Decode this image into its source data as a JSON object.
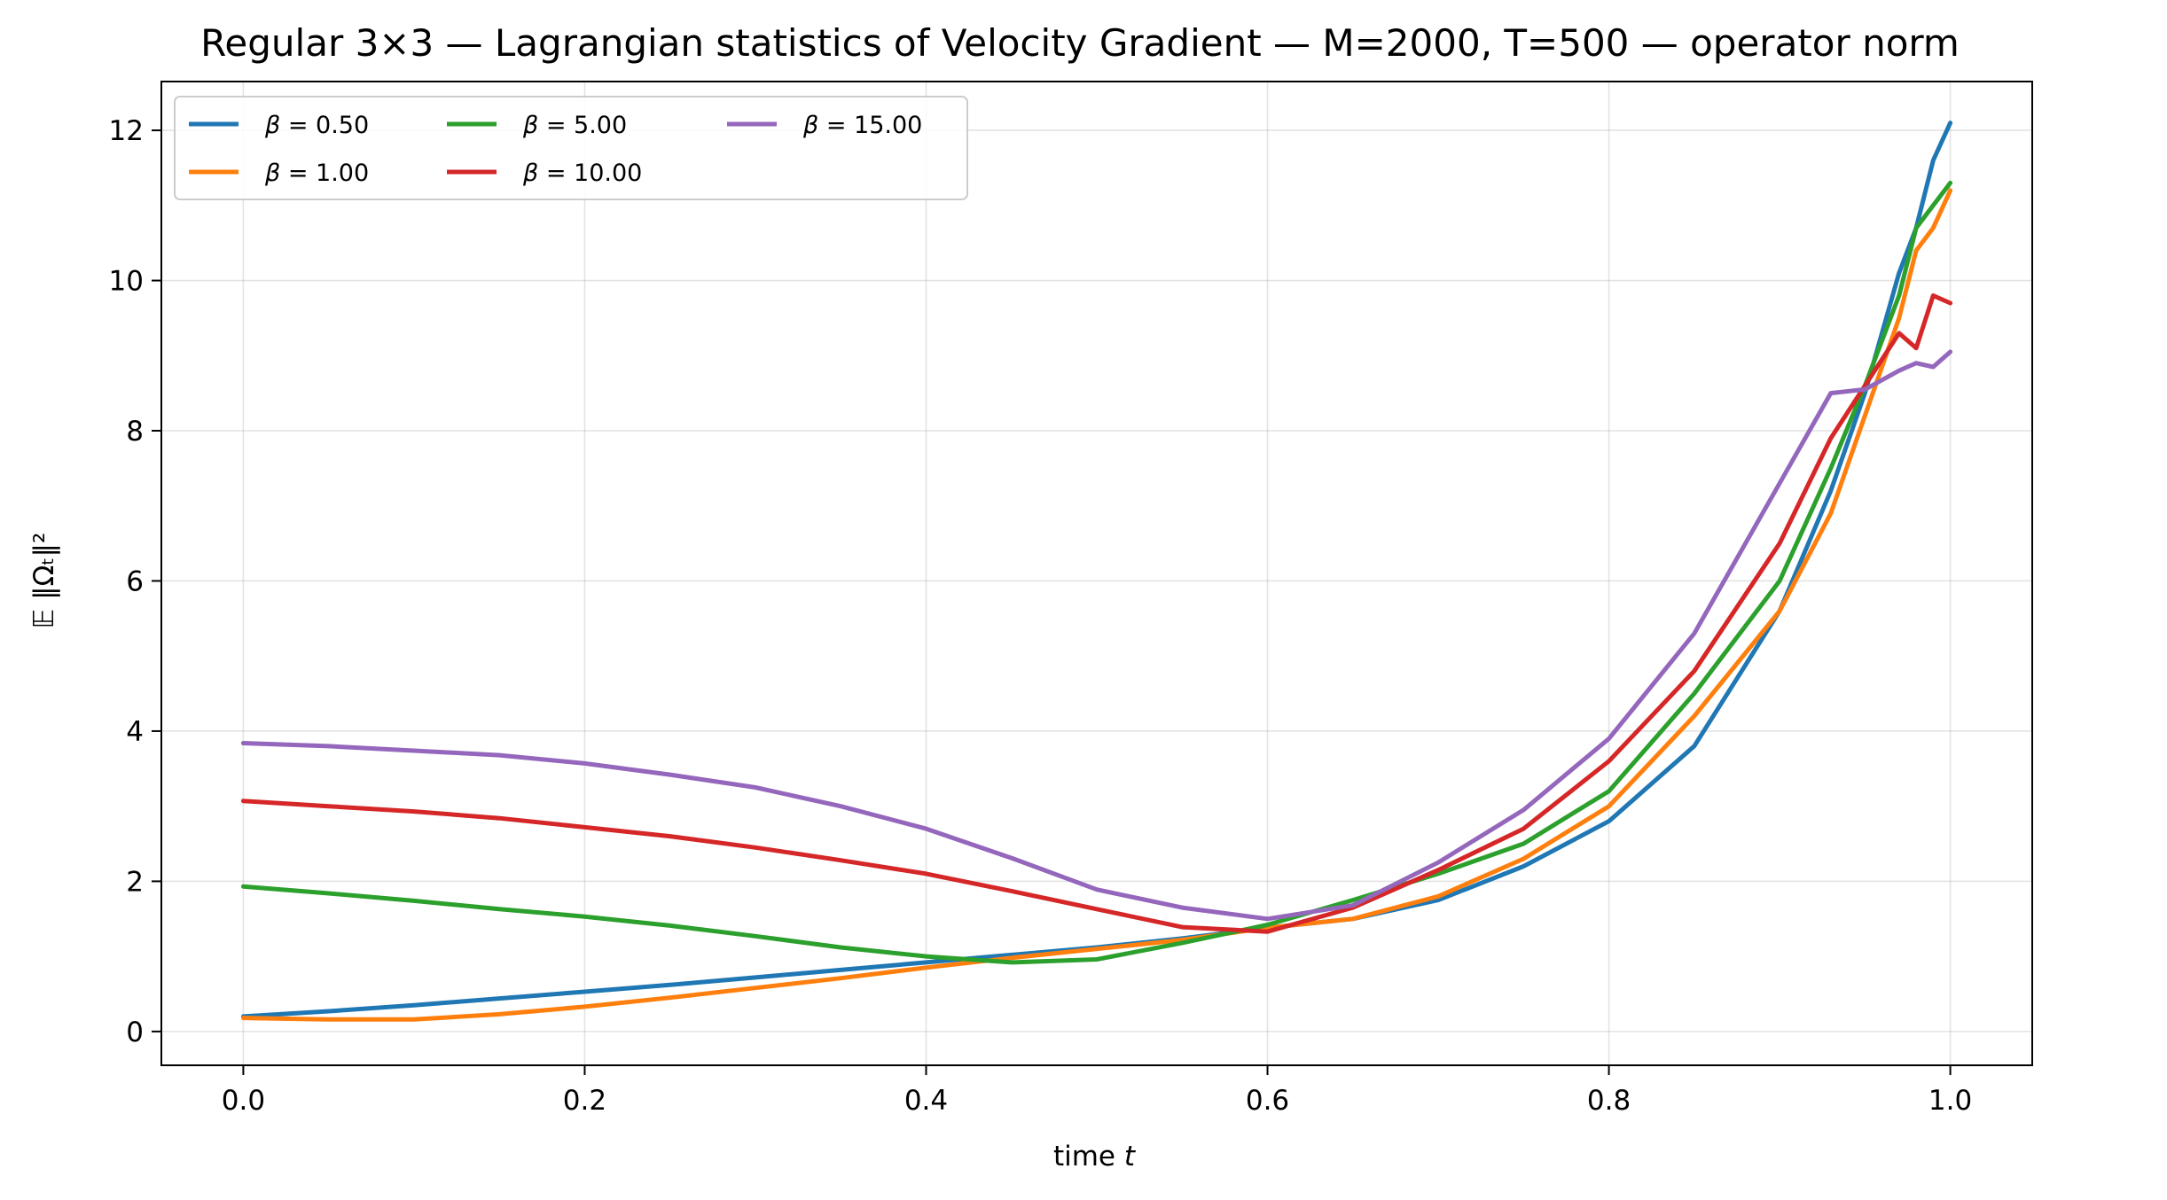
{
  "chart_data": {
    "type": "line",
    "title": "Regular 3×3 — Lagrangian statistics of Velocity Gradient — M=2000, T=500 — operator norm",
    "xlabel": "time t",
    "ylabel": "𝔼 ‖Ωₜ‖²",
    "xlim": [
      -0.048,
      1.048
    ],
    "ylim": [
      -0.45,
      12.65
    ],
    "xticks": [
      0.0,
      0.2,
      0.4,
      0.6,
      0.8,
      1.0
    ],
    "xtick_labels": [
      "0.0",
      "0.2",
      "0.4",
      "0.6",
      "0.8",
      "1.0"
    ],
    "yticks": [
      0,
      2,
      4,
      6,
      8,
      10,
      12
    ],
    "ytick_labels": [
      "0",
      "2",
      "4",
      "6",
      "8",
      "10",
      "12"
    ],
    "grid": true,
    "legend_position": "top-left",
    "legend_columns": 3,
    "x": [
      0.0,
      0.05,
      0.1,
      0.15,
      0.2,
      0.25,
      0.3,
      0.35,
      0.4,
      0.45,
      0.5,
      0.55,
      0.6,
      0.65,
      0.7,
      0.75,
      0.8,
      0.85,
      0.9,
      0.93,
      0.95,
      0.97,
      0.98,
      0.99,
      1.0
    ],
    "series": [
      {
        "name": "β = 0.50",
        "legend_prefix": "β = ",
        "legend_value": "0.50",
        "color": "#1f77b4",
        "values": [
          0.2,
          0.27,
          0.35,
          0.44,
          0.53,
          0.62,
          0.72,
          0.82,
          0.92,
          1.02,
          1.12,
          1.24,
          1.38,
          1.5,
          1.75,
          2.2,
          2.8,
          3.8,
          5.6,
          7.2,
          8.5,
          10.1,
          10.7,
          11.6,
          12.1
        ]
      },
      {
        "name": "β = 1.00",
        "legend_prefix": "β = ",
        "legend_value": "1.00",
        "color": "#ff7f0e",
        "values": [
          0.18,
          0.16,
          0.16,
          0.23,
          0.33,
          0.45,
          0.58,
          0.71,
          0.85,
          0.98,
          1.1,
          1.22,
          1.38,
          1.5,
          1.8,
          2.3,
          3.0,
          4.2,
          5.6,
          6.9,
          8.2,
          9.5,
          10.4,
          10.7,
          11.2
        ]
      },
      {
        "name": "β = 5.00",
        "legend_prefix": "β = ",
        "legend_value": "5.00",
        "color": "#2ca02c",
        "values": [
          1.93,
          1.84,
          1.74,
          1.63,
          1.53,
          1.41,
          1.27,
          1.12,
          1.0,
          0.92,
          0.96,
          1.18,
          1.42,
          1.75,
          2.1,
          2.5,
          3.2,
          4.5,
          6.0,
          7.5,
          8.6,
          9.8,
          10.7,
          11.0,
          11.3
        ]
      },
      {
        "name": "β = 10.00",
        "legend_prefix": "β = ",
        "legend_value": "10.00",
        "color": "#d62728",
        "values": [
          3.07,
          3.0,
          2.93,
          2.84,
          2.72,
          2.6,
          2.45,
          2.28,
          2.1,
          1.87,
          1.63,
          1.39,
          1.33,
          1.65,
          2.15,
          2.7,
          3.6,
          4.8,
          6.5,
          7.9,
          8.6,
          9.3,
          9.1,
          9.8,
          9.7
        ]
      },
      {
        "name": "β = 15.00",
        "legend_prefix": "β = ",
        "legend_value": "15.00",
        "color": "#9467bd",
        "values": [
          3.84,
          3.8,
          3.74,
          3.68,
          3.57,
          3.42,
          3.25,
          3.0,
          2.7,
          2.31,
          1.89,
          1.65,
          1.5,
          1.68,
          2.25,
          2.95,
          3.9,
          5.3,
          7.3,
          8.5,
          8.55,
          8.8,
          8.9,
          8.85,
          9.05
        ]
      }
    ]
  }
}
